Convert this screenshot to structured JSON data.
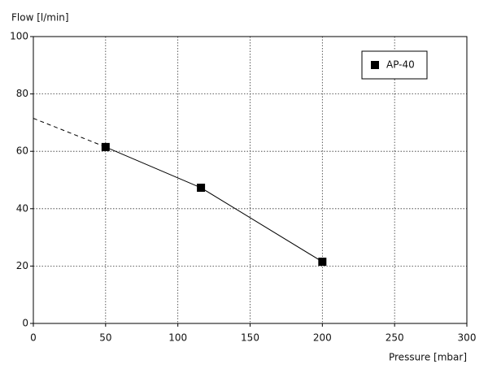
{
  "chart_data": {
    "type": "line",
    "y_label": "Flow [l/min]",
    "x_label": "Pressure [mbar]",
    "series": [
      {
        "name": "AP-40",
        "color": "#000000",
        "x": [
          50,
          116,
          200
        ],
        "values": [
          61.5,
          47.3,
          21.5
        ]
      }
    ],
    "dashed_extension": {
      "x": [
        0,
        50
      ],
      "values": [
        71.5,
        61.5
      ]
    },
    "xlim": [
      0,
      300
    ],
    "xticks": [
      0,
      50,
      100,
      150,
      200,
      250,
      300
    ],
    "ylim": [
      0,
      100
    ],
    "yticks": [
      0,
      20,
      40,
      60,
      80,
      100
    ],
    "grid": true,
    "legend": "upper-right"
  }
}
